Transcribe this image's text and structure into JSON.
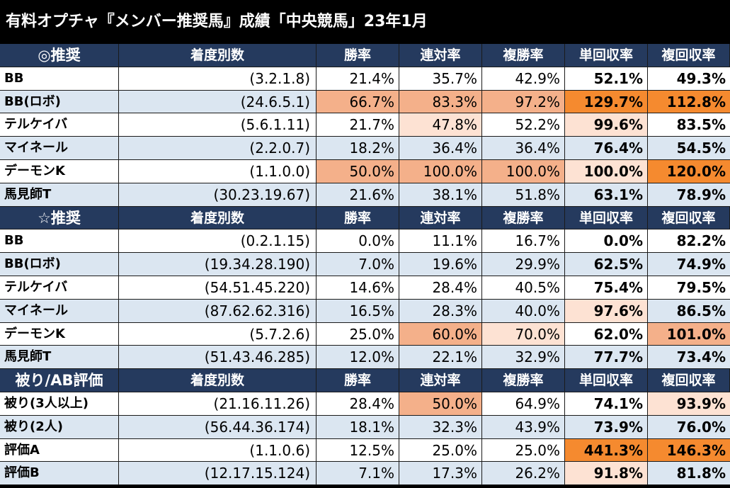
{
  "title": "有料オプチャ『メンバー推奨馬』成績「中央競馬」23年1月",
  "sections": [
    {
      "header": [
        "◎推奨",
        "着度別数",
        "勝率",
        "連対率",
        "複勝率",
        "単回収率",
        "複回収率"
      ],
      "rows": [
        {
          "cells": [
            "BB",
            "(3.2.1.8)",
            "21.4%",
            "35.7%",
            "42.9%",
            "52.1%",
            "49.3%"
          ],
          "hl": [
            "",
            "",
            "",
            "",
            "",
            "",
            ""
          ]
        },
        {
          "cells": [
            "BB(ロボ)",
            "(24.6.5.1)",
            "66.7%",
            "83.3%",
            "97.2%",
            "129.7%",
            "112.8%"
          ],
          "hl": [
            "",
            "",
            "med",
            "med",
            "med",
            "strong",
            "strong"
          ]
        },
        {
          "cells": [
            "テルケイバ",
            "(5.6.1.11)",
            "21.7%",
            "47.8%",
            "52.2%",
            "99.6%",
            "83.5%"
          ],
          "hl": [
            "",
            "",
            "",
            "light",
            "",
            "light",
            ""
          ]
        },
        {
          "cells": [
            "マイネール",
            "(2.2.0.7)",
            "18.2%",
            "36.4%",
            "36.4%",
            "76.4%",
            "54.5%"
          ],
          "hl": [
            "",
            "",
            "",
            "",
            "",
            "",
            ""
          ]
        },
        {
          "cells": [
            "デーモンK",
            "(1.1.0.0)",
            "50.0%",
            "100.0%",
            "100.0%",
            "100.0%",
            "120.0%"
          ],
          "hl": [
            "",
            "",
            "med",
            "med",
            "med",
            "light",
            "strong"
          ]
        },
        {
          "cells": [
            "馬見師T",
            "(30.23.19.67)",
            "21.6%",
            "38.1%",
            "51.8%",
            "63.1%",
            "78.9%"
          ],
          "hl": [
            "",
            "",
            "",
            "",
            "",
            "",
            ""
          ]
        }
      ]
    },
    {
      "header": [
        "☆推奨",
        "着度別数",
        "勝率",
        "連対率",
        "複勝率",
        "単回収率",
        "複回収率"
      ],
      "rows": [
        {
          "cells": [
            "BB",
            "(0.2.1.15)",
            "0.0%",
            "11.1%",
            "16.7%",
            "0.0%",
            "82.2%"
          ],
          "hl": [
            "",
            "",
            "",
            "",
            "",
            "",
            ""
          ]
        },
        {
          "cells": [
            "BB(ロボ)",
            "(19.34.28.190)",
            "7.0%",
            "19.6%",
            "29.9%",
            "62.5%",
            "74.9%"
          ],
          "hl": [
            "",
            "",
            "",
            "",
            "",
            "",
            ""
          ]
        },
        {
          "cells": [
            "テルケイバ",
            "(54.51.45.220)",
            "14.6%",
            "28.4%",
            "40.5%",
            "75.4%",
            "79.5%"
          ],
          "hl": [
            "",
            "",
            "",
            "",
            "",
            "",
            ""
          ]
        },
        {
          "cells": [
            "マイネール",
            "(87.62.62.316)",
            "16.5%",
            "28.3%",
            "40.0%",
            "97.6%",
            "86.5%"
          ],
          "hl": [
            "",
            "",
            "",
            "",
            "",
            "light",
            ""
          ]
        },
        {
          "cells": [
            "デーモンK",
            "(5.7.2.6)",
            "25.0%",
            "60.0%",
            "70.0%",
            "62.0%",
            "101.0%"
          ],
          "hl": [
            "",
            "",
            "",
            "med",
            "light",
            "",
            "med"
          ]
        },
        {
          "cells": [
            "馬見師T",
            "(51.43.46.285)",
            "12.0%",
            "22.1%",
            "32.9%",
            "77.7%",
            "73.4%"
          ],
          "hl": [
            "",
            "",
            "",
            "",
            "",
            "",
            ""
          ]
        }
      ]
    },
    {
      "header": [
        "被り/AB評価",
        "着度別数",
        "勝率",
        "連対率",
        "複勝率",
        "単回収率",
        "複回収率"
      ],
      "rows": [
        {
          "cells": [
            "被り(3人以上)",
            "(21.16.11.26)",
            "28.4%",
            "50.0%",
            "64.9%",
            "74.1%",
            "93.9%"
          ],
          "hl": [
            "",
            "",
            "",
            "med",
            "",
            "",
            "light"
          ]
        },
        {
          "cells": [
            "被り(2人)",
            "(56.44.36.174)",
            "18.1%",
            "32.3%",
            "43.9%",
            "73.9%",
            "76.0%"
          ],
          "hl": [
            "",
            "",
            "",
            "",
            "",
            "",
            ""
          ]
        },
        {
          "cells": [
            "評価A",
            "(1.1.0.6)",
            "12.5%",
            "25.0%",
            "25.0%",
            "441.3%",
            "146.3%"
          ],
          "hl": [
            "",
            "",
            "",
            "",
            "",
            "strong",
            "strong"
          ]
        },
        {
          "cells": [
            "評価B",
            "(12.17.15.124)",
            "7.1%",
            "17.3%",
            "26.2%",
            "91.8%",
            "81.8%"
          ],
          "hl": [
            "",
            "",
            "",
            "",
            "",
            "light",
            ""
          ]
        }
      ]
    }
  ]
}
